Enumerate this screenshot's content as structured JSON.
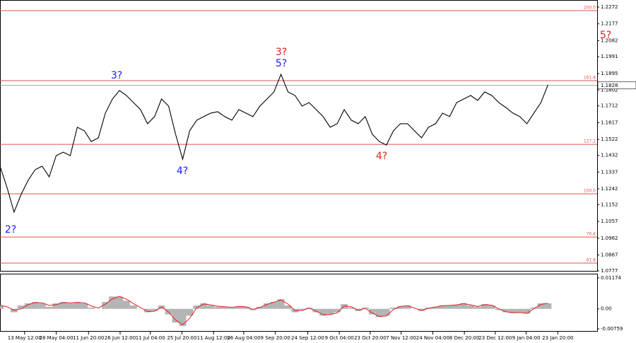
{
  "chart_data": [
    {
      "type": "line",
      "series": [
        {
          "color": "#000000",
          "values": [
            1.137,
            1.125,
            1.111,
            1.121,
            1.129,
            1.135,
            1.137,
            1.131,
            1.143,
            1.145,
            1.143,
            1.1591,
            1.1571,
            1.151,
            1.1531,
            1.1671,
            1.1751,
            1.1799,
            1.1771,
            1.1731,
            1.1691,
            1.1611,
            1.1651,
            1.1751,
            1.1711,
            1.1551,
            1.141,
            1.1571,
            1.1631,
            1.1651,
            1.1671,
            1.1679,
            1.1651,
            1.1631,
            1.1691,
            1.1671,
            1.1651,
            1.1711,
            1.1751,
            1.1791,
            1.1891,
            1.1791,
            1.1771,
            1.1711,
            1.1731,
            1.1691,
            1.1651,
            1.1591,
            1.1611,
            1.1691,
            1.1631,
            1.1611,
            1.1651,
            1.1551,
            1.151,
            1.149,
            1.1571,
            1.1611,
            1.1611,
            1.1571,
            1.1531,
            1.1591,
            1.1611,
            1.1671,
            1.1651,
            1.1731,
            1.1751,
            1.1771,
            1.1743,
            1.1791,
            1.1771,
            1.1731,
            1.1703,
            1.1671,
            1.1651,
            1.1611,
            1.1671,
            1.1731,
            1.1831
          ]
        }
      ],
      "xlim": [
        0,
        85
      ],
      "xticks": [
        {
          "value": 3.5,
          "label": "13 May 12:00"
        },
        {
          "value": 8.0,
          "label": "28 May 04:00"
        },
        {
          "value": 12.6,
          "label": "11 Jun 20:00"
        },
        {
          "value": 17.1,
          "label": "26 Jun 12:00"
        },
        {
          "value": 21.4,
          "label": "11 Jul 04:00"
        },
        {
          "value": 25.9,
          "label": "25 Jul 20:00"
        },
        {
          "value": 30.4,
          "label": "11 Aug 12:00"
        },
        {
          "value": 34.7,
          "label": "26 Aug 04:00"
        },
        {
          "value": 39.2,
          "label": "9 Sep 20:00"
        },
        {
          "value": 43.8,
          "label": "24 Sep 12:00"
        },
        {
          "value": 48.3,
          "label": "9 Oct 04:00"
        },
        {
          "value": 52.7,
          "label": "23 Oct 20:00"
        },
        {
          "value": 57.1,
          "label": "7 Nov 12:00"
        },
        {
          "value": 61.6,
          "label": "24 Nov 04:00"
        },
        {
          "value": 66.1,
          "label": "8 Dec 20:00"
        },
        {
          "value": 70.5,
          "label": "23 Dec 12:00"
        },
        {
          "value": 74.9,
          "label": "9 Jan 04:00"
        },
        {
          "value": 79.4,
          "label": "23 Jan 20:00"
        }
      ],
      "ylim": [
        1.0777,
        1.2272
      ],
      "yticks": [
        1.2272,
        1.2177,
        1.2082,
        1.1991,
        1.1895,
        1.1802,
        1.1712,
        1.1617,
        1.1522,
        1.1432,
        1.1337,
        1.1242,
        1.1152,
        1.1057,
        1.0962,
        1.0867,
        1.0777
      ],
      "current_price": 1.1828,
      "levels_color": "#e05050",
      "levels": [
        {
          "value": 1.2252,
          "label": "200.0"
        },
        {
          "value": 1.1855,
          "label": "161.8"
        },
        {
          "value": 1.1494,
          "label": "127.2"
        },
        {
          "value": 1.1214,
          "label": "100.0"
        },
        {
          "value": 1.0969,
          "label": "76.4"
        },
        {
          "value": 1.0821,
          "label": "61.8"
        }
      ],
      "annotations": [
        {
          "text": "2?",
          "color": "#1a1aff"
        },
        {
          "text": "3?",
          "color": "#1a1aff"
        },
        {
          "text": "4?",
          "color": "#1a1aff"
        },
        {
          "text": "3?",
          "color": "#e02020"
        },
        {
          "text": "5?",
          "color": "#1a1aff"
        },
        {
          "text": "4?",
          "color": "#e02020"
        },
        {
          "text": "5?",
          "color": "#e02020"
        }
      ]
    },
    {
      "type": "oscillator",
      "series": [
        {
          "color": "#b4b4b4",
          "values": [
            0.0013,
            0,
            -0.0013,
            0.0013,
            0.0021,
            0.0026,
            0.0021,
            0.0008,
            0.0021,
            0.0026,
            0.0021,
            0.0026,
            0.0021,
            0.0005,
            0,
            0.0026,
            0.0047,
            0.0047,
            0.0031,
            0.0013,
            0,
            -0.0013,
            -0.0008,
            0.0013,
            -0.0021,
            -0.0052,
            -0.0065,
            -0.0026,
            0.0013,
            0.0021,
            0.0013,
            0.0008,
            0.0008,
            0.0005,
            0.001,
            0.0008,
            -0.0005,
            0.0008,
            0.0021,
            0.0026,
            0.0037,
            0.0013,
            -0.0013,
            -0.0005,
            0.0005,
            -0.0013,
            -0.0026,
            -0.0021,
            -0.0013,
            0.0018,
            0.0005,
            -0.0008,
            0.0005,
            -0.0021,
            -0.0031,
            -0.0026,
            0.0005,
            0.001,
            0.0013,
            0,
            -0.0008,
            0.0005,
            0.0008,
            0.0013,
            0.0013,
            0.0016,
            0.0021,
            0.0013,
            0.0008,
            0.0018,
            0.0013,
            -0.0005,
            -0.0013,
            -0.0016,
            -0.0013,
            -0.0018,
            0.0005,
            0.0021,
            0.0021
          ]
        },
        {
          "color": "#e02020",
          "values": [
            0.0013,
            0.0008,
            -0.0005,
            0,
            0.0016,
            0.0024,
            0.0023,
            0.0013,
            0.0016,
            0.0024,
            0.0023,
            0.0024,
            0.0023,
            0.0011,
            0.0003,
            0.0018,
            0.0038,
            0.0047,
            0.0037,
            0.002,
            0.0005,
            -0.001,
            -0.0009,
            0.0007,
            -0.0012,
            -0.0042,
            -0.006,
            -0.0036,
            0.0004,
            0.0019,
            0.0015,
            0.001,
            0.0008,
            0.0006,
            0.0009,
            0.0008,
            -0.0002,
            0.0005,
            0.0017,
            0.0025,
            0.0034,
            0.0018,
            -0.0007,
            -0.0006,
            0.0003,
            -0.0009,
            -0.0022,
            -0.0022,
            -0.0015,
            0.0011,
            0.0008,
            -0.0005,
            0.0002,
            -0.0016,
            -0.0029,
            -0.0027,
            -0.0002,
            0.0009,
            0.0012,
            0.0003,
            -0.0006,
            0.0002,
            0.0007,
            0.0012,
            0.0013,
            0.0015,
            0.002,
            0.0015,
            0.0009,
            0.0016,
            0.0014,
            0.0,
            -0.0011,
            -0.0015,
            -0.0014,
            -0.0017,
            0.0001,
            0.0017,
            0.0021
          ]
        }
      ],
      "xlim": [
        0,
        85
      ],
      "ylim": [
        -0.00759,
        0.01174
      ],
      "yticks": [
        0.01174,
        {
          "value": 0,
          "label": "0.00"
        },
        -0.00759
      ]
    }
  ]
}
